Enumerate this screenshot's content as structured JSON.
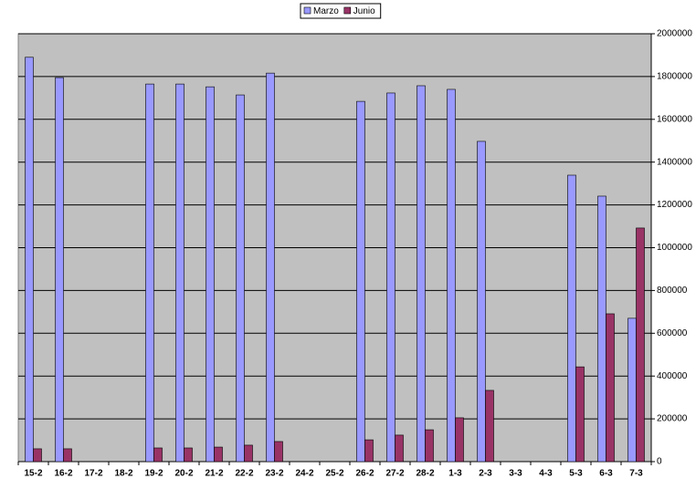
{
  "chart_data": {
    "type": "bar",
    "categories": [
      "15-2",
      "16-2",
      "17-2",
      "18-2",
      "19-2",
      "20-2",
      "21-2",
      "22-2",
      "23-2",
      "24-2",
      "25-2",
      "26-2",
      "27-2",
      "28-2",
      "1-3",
      "2-3",
      "3-3",
      "4-3",
      "5-3",
      "6-3",
      "7-3"
    ],
    "series": [
      {
        "name": "Marzo",
        "color": "#9999ff",
        "values": [
          1890000,
          1795000,
          null,
          null,
          1765000,
          1765000,
          1752000,
          1714000,
          1816000,
          null,
          null,
          1684000,
          1723000,
          1757000,
          1740000,
          1497000,
          null,
          null,
          1339000,
          1241000,
          670000
        ]
      },
      {
        "name": "Junio",
        "color": "#993366",
        "values": [
          60000,
          60000,
          null,
          null,
          64000,
          64000,
          68000,
          77000,
          94000,
          null,
          null,
          102000,
          124000,
          149000,
          205000,
          333000,
          null,
          null,
          443000,
          691000,
          1092000
        ]
      }
    ],
    "ylim": [
      0,
      2000000
    ],
    "yticks": [
      0,
      200000,
      400000,
      600000,
      800000,
      1000000,
      1200000,
      1400000,
      1600000,
      1800000,
      2000000
    ],
    "grid": true,
    "legend": "top"
  }
}
